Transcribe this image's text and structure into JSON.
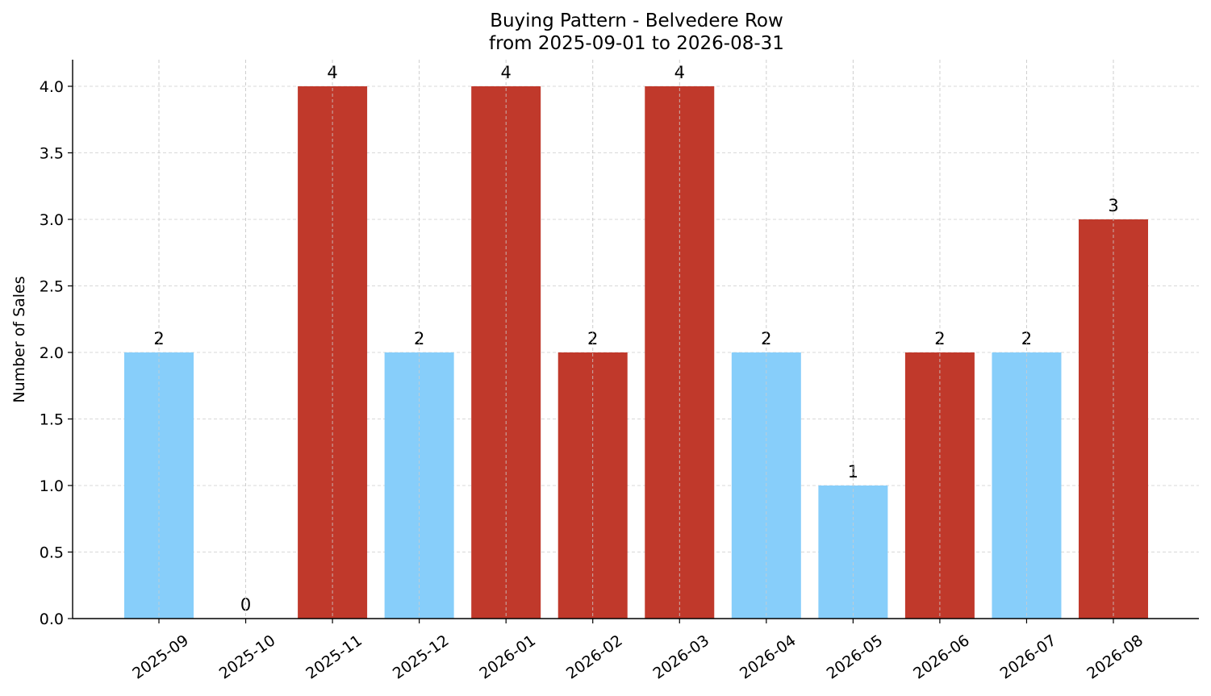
{
  "chart_data": {
    "type": "bar",
    "title": "Buying Pattern - Belvedere Row",
    "subtitle": "from 2025-09-01 to 2026-08-31",
    "xlabel": "",
    "ylabel": "Number of Sales",
    "categories": [
      "2025-09",
      "2025-10",
      "2025-11",
      "2025-12",
      "2026-01",
      "2026-02",
      "2026-03",
      "2026-04",
      "2026-05",
      "2026-06",
      "2026-07",
      "2026-08"
    ],
    "values": [
      2,
      0,
      4,
      2,
      4,
      2,
      4,
      2,
      1,
      2,
      2,
      3
    ],
    "data_labels": [
      "2",
      "0",
      "4",
      "2",
      "4",
      "2",
      "4",
      "2",
      "1",
      "2",
      "2",
      "3"
    ],
    "bar_colors": [
      "#87CEFA",
      "#87CEFA",
      "#C0392B",
      "#87CEFA",
      "#C0392B",
      "#C0392B",
      "#C0392B",
      "#87CEFA",
      "#87CEFA",
      "#C0392B",
      "#87CEFA",
      "#C0392B"
    ],
    "ylim": [
      0,
      4.2
    ],
    "yticks": [
      0.0,
      0.5,
      1.0,
      1.5,
      2.0,
      2.5,
      3.0,
      3.5,
      4.0
    ],
    "ytick_labels": [
      "0.0",
      "0.5",
      "1.0",
      "1.5",
      "2.0",
      "2.5",
      "3.0",
      "3.5",
      "4.0"
    ],
    "grid": true,
    "legend": "none"
  }
}
